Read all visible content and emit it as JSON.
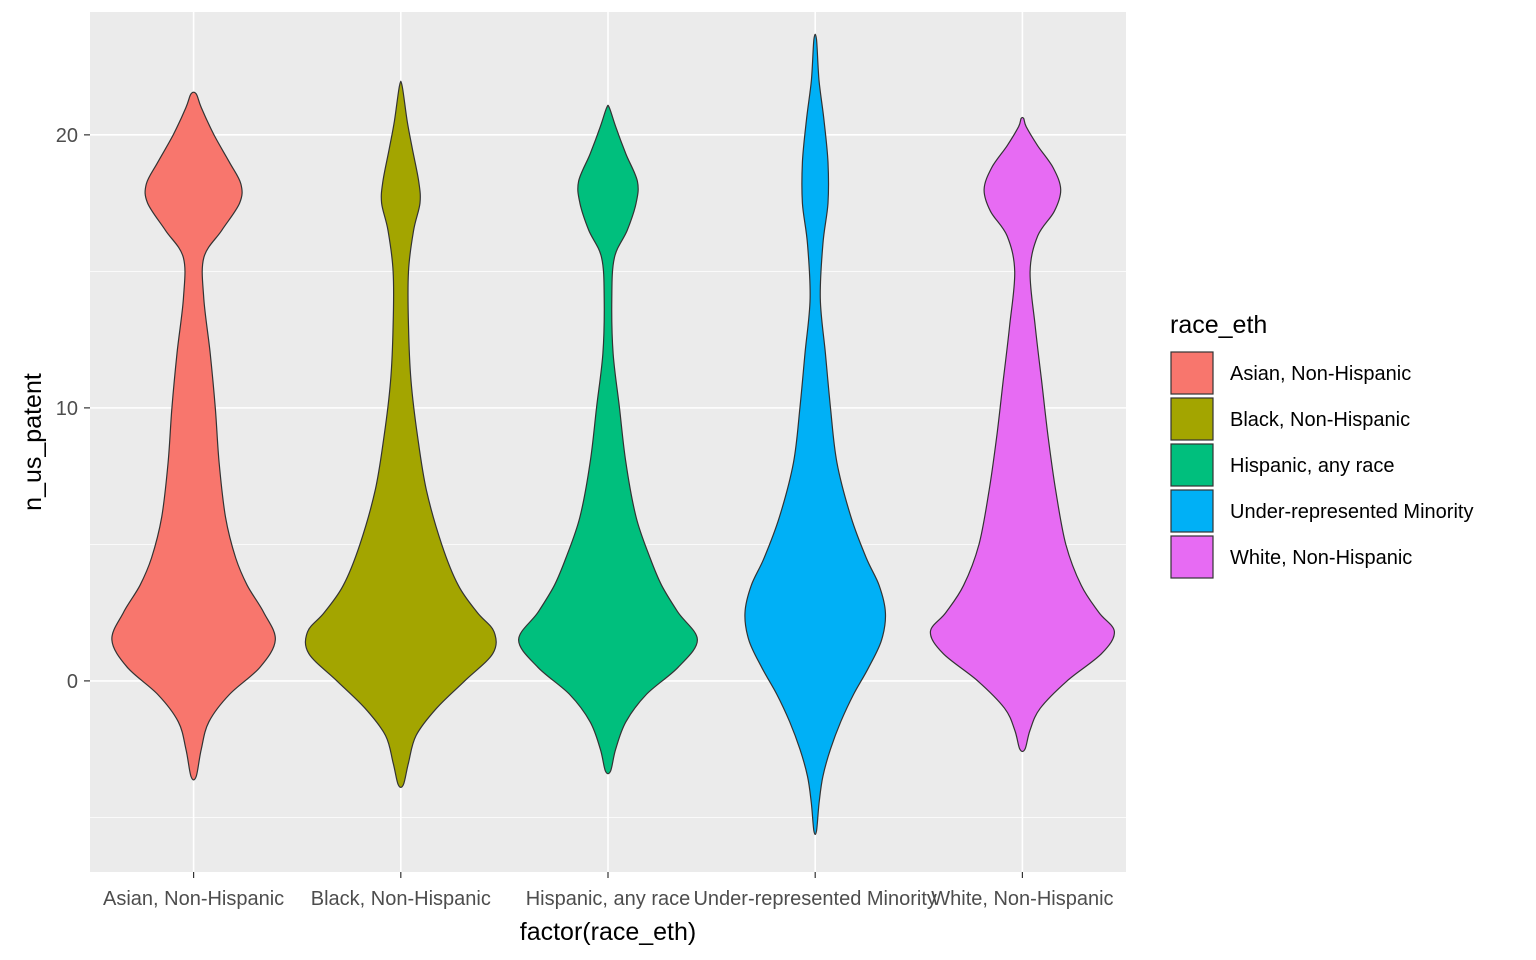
{
  "chart_data": {
    "type": "violin",
    "xlabel": "factor(race_eth)",
    "ylabel": "n_us_patent",
    "ylim": [
      -7,
      24.5
    ],
    "y_ticks": [
      0,
      10,
      20
    ],
    "y_minor_ticks": [
      -5,
      5,
      15
    ],
    "categories": [
      "Asian, Non-Hispanic",
      "Black, Non-Hispanic",
      "Hispanic, any race",
      "Under-represented Minority",
      "White, Non-Hispanic"
    ],
    "legend": {
      "title": "race_eth",
      "placement": "right",
      "entries": [
        "Asian, Non-Hispanic",
        "Black, Non-Hispanic",
        "Hispanic, any race",
        "Under-represented Minority",
        "White, Non-Hispanic"
      ]
    },
    "grid": true,
    "series": [
      {
        "name": "Asian, Non-Hispanic",
        "color": "#F8766D",
        "profile": [
          [
            -3.5,
            0.02
          ],
          [
            -2.5,
            0.06
          ],
          [
            -1.5,
            0.12
          ],
          [
            -0.5,
            0.28
          ],
          [
            0.5,
            0.52
          ],
          [
            1.5,
            0.64
          ],
          [
            2.5,
            0.55
          ],
          [
            3.5,
            0.42
          ],
          [
            4.5,
            0.33
          ],
          [
            6,
            0.25
          ],
          [
            8,
            0.2
          ],
          [
            10,
            0.17
          ],
          [
            12,
            0.13
          ],
          [
            14,
            0.08
          ],
          [
            15.5,
            0.08
          ],
          [
            16.5,
            0.22
          ],
          [
            17.5,
            0.36
          ],
          [
            18.2,
            0.37
          ],
          [
            19,
            0.28
          ],
          [
            20,
            0.16
          ],
          [
            21,
            0.06
          ],
          [
            21.5,
            0.02
          ]
        ]
      },
      {
        "name": "Black, Non-Hispanic",
        "color": "#A3A500",
        "profile": [
          [
            -3.8,
            0.02
          ],
          [
            -3,
            0.06
          ],
          [
            -2,
            0.12
          ],
          [
            -1,
            0.28
          ],
          [
            0,
            0.5
          ],
          [
            1,
            0.72
          ],
          [
            1.8,
            0.73
          ],
          [
            2.5,
            0.6
          ],
          [
            3.5,
            0.45
          ],
          [
            5,
            0.32
          ],
          [
            7,
            0.2
          ],
          [
            9,
            0.13
          ],
          [
            11,
            0.08
          ],
          [
            13,
            0.06
          ],
          [
            15,
            0.06
          ],
          [
            16.5,
            0.1
          ],
          [
            17.5,
            0.15
          ],
          [
            18.3,
            0.14
          ],
          [
            19.5,
            0.09
          ],
          [
            20.5,
            0.05
          ],
          [
            21.8,
            0.01
          ]
        ]
      },
      {
        "name": "Hispanic, any race",
        "color": "#00BF7D",
        "profile": [
          [
            -3.3,
            0.02
          ],
          [
            -2.5,
            0.06
          ],
          [
            -1.5,
            0.14
          ],
          [
            -0.5,
            0.3
          ],
          [
            0.5,
            0.55
          ],
          [
            1.5,
            0.7
          ],
          [
            2.5,
            0.55
          ],
          [
            3.5,
            0.42
          ],
          [
            4.5,
            0.33
          ],
          [
            6,
            0.22
          ],
          [
            8,
            0.14
          ],
          [
            10,
            0.09
          ],
          [
            12,
            0.04
          ],
          [
            14,
            0.03
          ],
          [
            15.5,
            0.05
          ],
          [
            16.5,
            0.15
          ],
          [
            17.5,
            0.22
          ],
          [
            18.3,
            0.23
          ],
          [
            19.3,
            0.14
          ],
          [
            20.3,
            0.06
          ],
          [
            21,
            0.01
          ]
        ]
      },
      {
        "name": "Under-represented Minority",
        "color": "#00B0F6",
        "profile": [
          [
            -5.5,
            0.01
          ],
          [
            -4.5,
            0.03
          ],
          [
            -3.5,
            0.06
          ],
          [
            -2.5,
            0.12
          ],
          [
            -1.5,
            0.2
          ],
          [
            -0.5,
            0.3
          ],
          [
            0.5,
            0.42
          ],
          [
            1.5,
            0.52
          ],
          [
            2.5,
            0.55
          ],
          [
            3.5,
            0.5
          ],
          [
            4.5,
            0.4
          ],
          [
            6,
            0.28
          ],
          [
            8,
            0.17
          ],
          [
            10,
            0.12
          ],
          [
            12,
            0.08
          ],
          [
            14,
            0.04
          ],
          [
            16,
            0.06
          ],
          [
            17.5,
            0.1
          ],
          [
            19,
            0.1
          ],
          [
            20.5,
            0.07
          ],
          [
            22,
            0.03
          ],
          [
            23.5,
            0.01
          ]
        ]
      },
      {
        "name": "White, Non-Hispanic",
        "color": "#E76BF3",
        "profile": [
          [
            -2.5,
            0.02
          ],
          [
            -1.8,
            0.06
          ],
          [
            -1,
            0.14
          ],
          [
            0,
            0.35
          ],
          [
            1,
            0.62
          ],
          [
            1.8,
            0.72
          ],
          [
            2.5,
            0.6
          ],
          [
            3.5,
            0.46
          ],
          [
            5,
            0.34
          ],
          [
            7,
            0.26
          ],
          [
            9,
            0.2
          ],
          [
            11,
            0.15
          ],
          [
            13,
            0.1
          ],
          [
            15,
            0.06
          ],
          [
            16.3,
            0.12
          ],
          [
            17.2,
            0.25
          ],
          [
            18,
            0.3
          ],
          [
            18.8,
            0.24
          ],
          [
            19.6,
            0.12
          ],
          [
            20.3,
            0.03
          ],
          [
            20.6,
            0.01
          ]
        ]
      }
    ]
  }
}
